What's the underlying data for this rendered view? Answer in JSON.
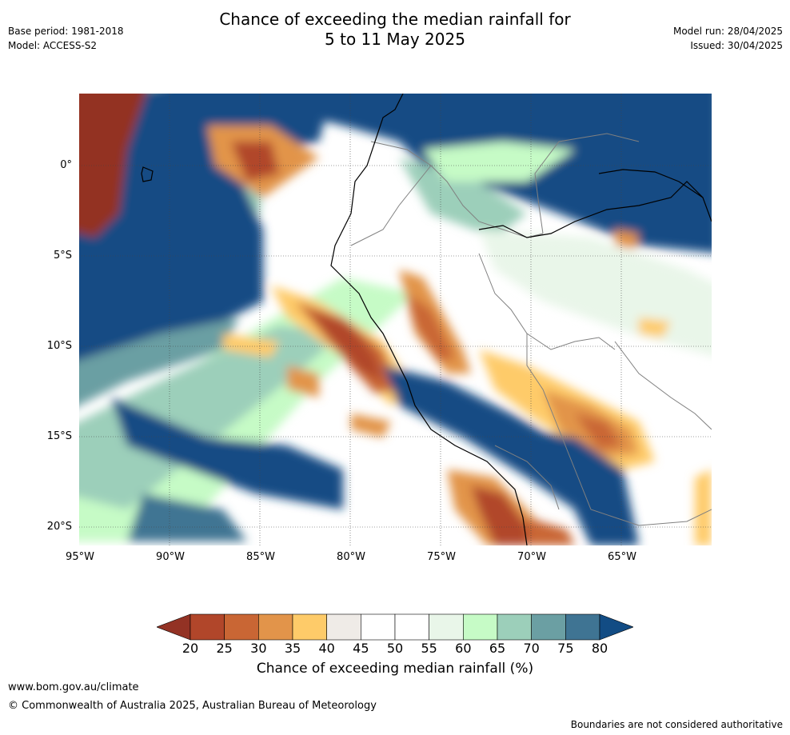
{
  "title": {
    "line1": "Chance of exceeding the median rainfall for",
    "line2": "5 to 11 May 2025"
  },
  "meta_left": {
    "base_period": "Base period: 1981-2018",
    "model": "Model: ACCESS-S2"
  },
  "meta_right": {
    "model_run": "Model run: 28/04/2025",
    "issued": "Issued: 30/04/2025"
  },
  "map": {
    "lat_labels": [
      "0°",
      "5°S",
      "10°S",
      "15°S",
      "20°S"
    ],
    "lon_labels": [
      "95°W",
      "90°W",
      "85°W",
      "80°W",
      "75°W",
      "70°W",
      "65°W"
    ],
    "extent": {
      "lon_min": -95,
      "lon_max": -60,
      "lat_min": -21,
      "lat_max": 4
    }
  },
  "colorbar": {
    "ticks": [
      "20",
      "25",
      "30",
      "35",
      "40",
      "45",
      "50",
      "55",
      "60",
      "65",
      "70",
      "75",
      "80"
    ],
    "colors": [
      "#933224",
      "#b1462a",
      "#c96634",
      "#e2944a",
      "#fecb69",
      "#efebe7",
      "#ffffff",
      "#ffffff",
      "#e9f6e9",
      "#c6fbc6",
      "#9ccfba",
      "#6b9fa3",
      "#3f7493",
      "#124c84"
    ],
    "label": "Chance of exceeding median rainfall (%)"
  },
  "footer": {
    "url": "www.bom.gov.au/climate",
    "copyright": "© Commonwealth of Australia 2025, Australian Bureau of Meteorology",
    "boundary_note": "Boundaries are not considered authoritative"
  }
}
